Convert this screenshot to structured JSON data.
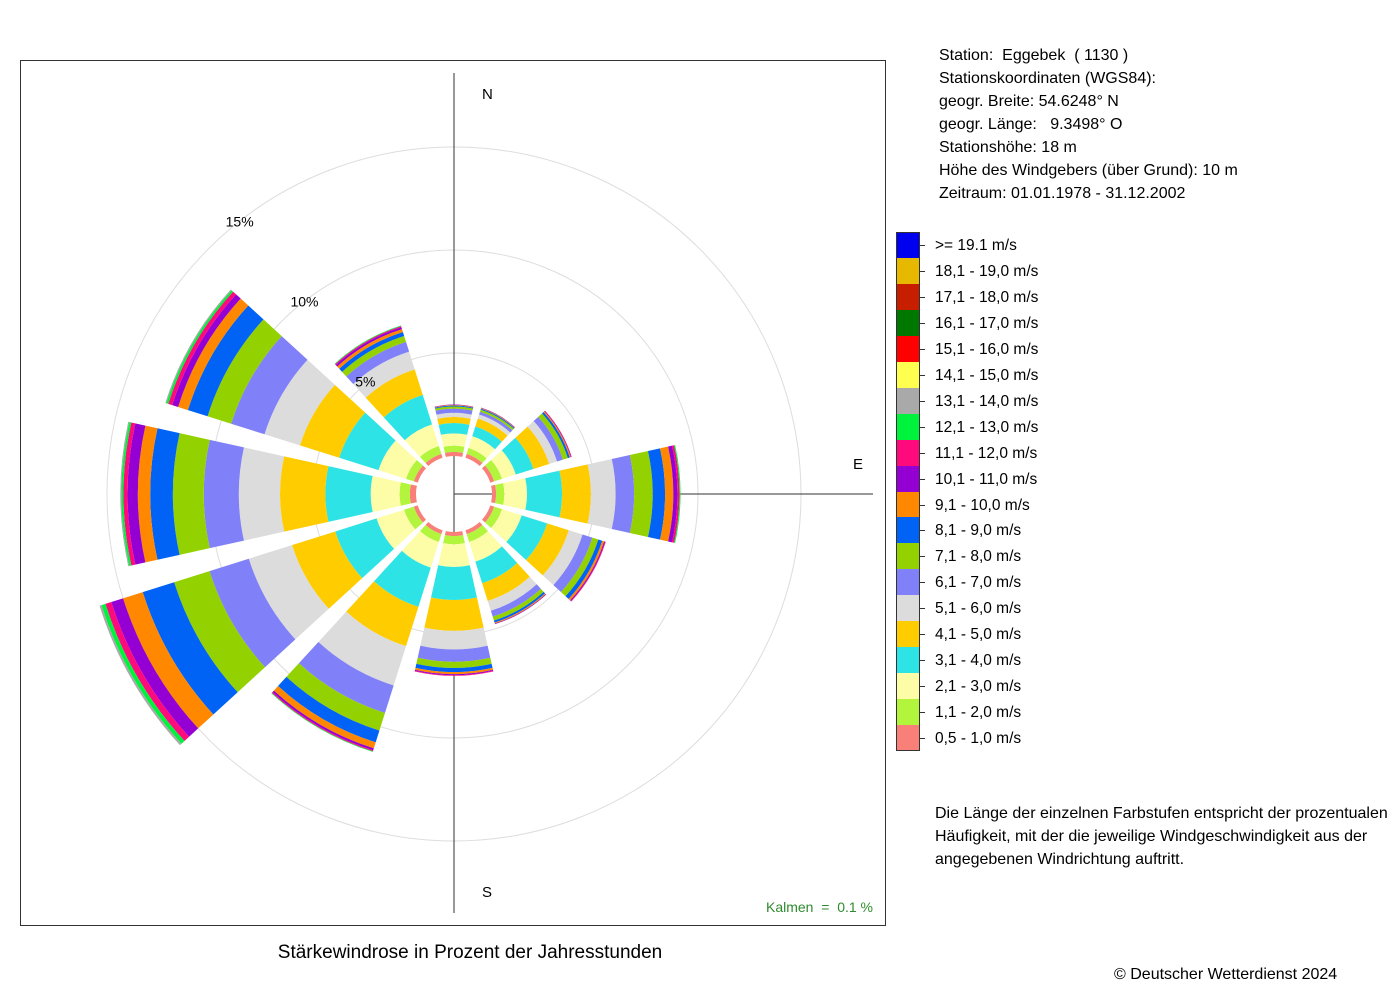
{
  "station": {
    "line1": "Station:  Eggebek  ( 1130 )",
    "line2": "Stationskoordinaten (WGS84):",
    "line3": "geogr. Breite: 54.6248° N",
    "line4": "geogr. Länge:   9.3498° O",
    "line5": "Stationshöhe: 18 m",
    "line6": "Höhe des Windgebers (über Grund): 10 m",
    "line7": "Zeitraum: 01.01.1978 - 31.12.2002"
  },
  "note": "Die Länge der einzelnen Farbstufen entspricht der prozentualen Häufigkeit, mit der die jeweilige Windgeschwindigkeit aus der angegebenen Windrichtung auftritt.",
  "copyright": "© Deutscher Wetterdienst  2024",
  "calms": "Kalmen  =  0.1 %",
  "chart_data": {
    "type": "wind-rose",
    "title": "Stärkewindrose in Prozent der Jahresstunden",
    "directions": [
      "N",
      "30°",
      "60°",
      "E",
      "120°",
      "150°",
      "S",
      "210°",
      "240°",
      "W",
      "300°",
      "330°"
    ],
    "sector_width_deg": 30,
    "compass_labels": [
      "N",
      "E",
      "S"
    ],
    "ring_labels": [
      "5%",
      "10%",
      "15%"
    ],
    "ring_values": [
      5,
      10,
      15
    ],
    "grid": true,
    "legend_position": "right",
    "speed_classes": [
      {
        "label": "0,5 - 1,0 m/s",
        "color": "#f88078"
      },
      {
        "label": "1,1 - 2,0 m/s",
        "color": "#b3f53c"
      },
      {
        "label": "2,1 - 3,0 m/s",
        "color": "#fdfda8"
      },
      {
        "label": "3,1 - 4,0 m/s",
        "color": "#2ee3e6"
      },
      {
        "label": "4,1 - 5,0 m/s",
        "color": "#ffcc00"
      },
      {
        "label": "5,1 - 6,0 m/s",
        "color": "#dcdcdc"
      },
      {
        "label": "6,1 - 7,0 m/s",
        "color": "#8080f8"
      },
      {
        "label": "7,1 - 8,0 m/s",
        "color": "#94d100"
      },
      {
        "label": "8,1 - 9,0 m/s",
        "color": "#0063f5"
      },
      {
        "label": "9,1 - 10,0 m/s",
        "color": "#ff8800"
      },
      {
        "label": "10,1 - 11,0 m/s",
        "color": "#9400d3"
      },
      {
        "label": "11,1 - 12,0 m/s",
        "color": "#ff0a7c"
      },
      {
        "label": "12,1 - 13,0 m/s",
        "color": "#00f33c"
      },
      {
        "label": "13,1 - 14,0 m/s",
        "color": "#a9a9a9"
      },
      {
        "label": "14,1 - 15,0 m/s",
        "color": "#ffff50"
      },
      {
        "label": "15,1 - 16,0 m/s",
        "color": "#ff0000"
      },
      {
        "label": "16,1 - 17,0 m/s",
        "color": "#007800"
      },
      {
        "label": "17,1 - 18,0 m/s",
        "color": "#c81e00"
      },
      {
        "label": "18,1 - 19,0 m/s",
        "color": "#e6b800"
      },
      {
        "label": ">= 19.1 m/s",
        "color": "#0000f0"
      }
    ],
    "series": [
      {
        "direction": "N",
        "values": [
          0.2,
          0.3,
          0.6,
          0.5,
          0.3,
          0.2,
          0.2,
          0.1,
          0.05,
          0.03,
          0.02
        ]
      },
      {
        "direction": "30°",
        "values": [
          0.2,
          0.3,
          0.6,
          0.5,
          0.4,
          0.2,
          0.15,
          0.1,
          0.05,
          0.03,
          0.02
        ]
      },
      {
        "direction": "60°",
        "values": [
          0.2,
          0.4,
          0.7,
          0.9,
          0.8,
          0.4,
          0.3,
          0.25,
          0.1,
          0.05,
          0.03,
          0.02
        ]
      },
      {
        "direction": "E",
        "values": [
          0.2,
          0.4,
          1.1,
          1.7,
          1.4,
          1.2,
          0.9,
          0.9,
          0.6,
          0.4,
          0.2,
          0.1,
          0.05
        ]
      },
      {
        "direction": "120°",
        "values": [
          0.2,
          0.4,
          1.0,
          1.3,
          1.1,
          0.7,
          0.5,
          0.3,
          0.2,
          0.1,
          0.05,
          0.03
        ]
      },
      {
        "direction": "150°",
        "values": [
          0.2,
          0.4,
          1.0,
          1.1,
          0.9,
          0.5,
          0.3,
          0.2,
          0.1,
          0.05,
          0.03
        ]
      },
      {
        "direction": "S",
        "values": [
          0.2,
          0.4,
          1.1,
          1.6,
          1.5,
          0.9,
          0.6,
          0.3,
          0.2,
          0.1,
          0.05,
          0.03
        ]
      },
      {
        "direction": "210°",
        "values": [
          0.2,
          0.4,
          1.3,
          2.0,
          2.0,
          2.0,
          1.4,
          0.9,
          0.6,
          0.3,
          0.1,
          0.05,
          0.03
        ]
      },
      {
        "direction": "240°",
        "values": [
          0.2,
          0.5,
          1.4,
          2.1,
          2.2,
          2.2,
          2.0,
          1.8,
          1.6,
          1.0,
          0.6,
          0.3,
          0.2,
          0.1
        ]
      },
      {
        "direction": "W",
        "values": [
          0.3,
          0.5,
          1.4,
          2.2,
          2.2,
          2.0,
          1.7,
          1.5,
          1.1,
          0.6,
          0.5,
          0.2,
          0.1,
          0.05
        ]
      },
      {
        "direction": "300°",
        "values": [
          0.2,
          0.4,
          1.4,
          2.0,
          2.0,
          1.8,
          1.7,
          1.2,
          1.0,
          0.5,
          0.3,
          0.2,
          0.1,
          0.05
        ]
      },
      {
        "direction": "330°",
        "values": [
          0.2,
          0.4,
          1.1,
          1.5,
          1.3,
          0.9,
          0.5,
          0.3,
          0.2,
          0.15,
          0.1,
          0.05,
          0.03
        ]
      }
    ]
  }
}
